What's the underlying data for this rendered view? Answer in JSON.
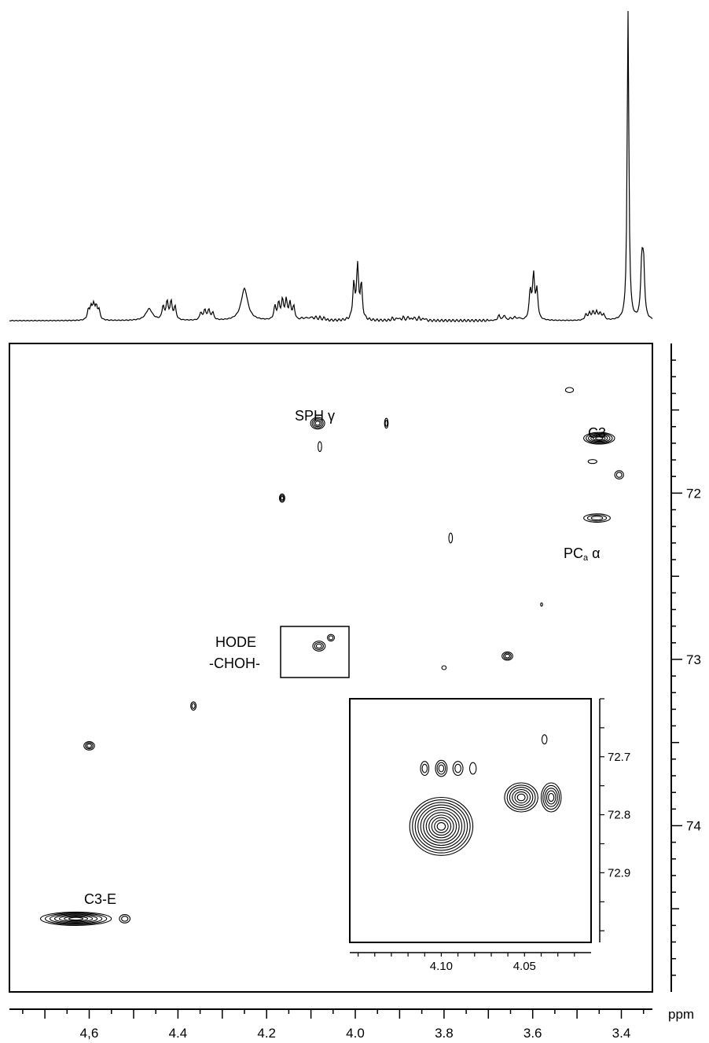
{
  "chart_data": {
    "type": "scatter",
    "subtype": "2D NMR contour plot (HSQC) with 1D proton projection",
    "x_axis": {
      "unit_label": "ppm",
      "range": [
        4.78,
        3.33
      ],
      "reversed": true,
      "ticks": [
        {
          "value": 4.6,
          "label": "4,6"
        },
        {
          "value": 4.4,
          "label": "4.4"
        },
        {
          "value": 4.2,
          "label": "4.2"
        },
        {
          "value": 4.0,
          "label": "4.0"
        },
        {
          "value": 3.8,
          "label": "3.8"
        },
        {
          "value": 3.6,
          "label": "3.6"
        },
        {
          "value": 3.4,
          "label": "3.4"
        }
      ]
    },
    "y_axis": {
      "range": [
        71.1,
        75.0
      ],
      "reversed": true,
      "ticks": [
        {
          "value": 72,
          "label": "72"
        },
        {
          "value": 73,
          "label": "73"
        },
        {
          "value": 74,
          "label": "74"
        }
      ]
    },
    "projection_1d": {
      "description": "proton spectrum along top",
      "multiplets": [
        {
          "x": 4.59,
          "height": 0.05,
          "n": 5,
          "spacing": 0.006
        },
        {
          "x": 4.465,
          "height": 0.04,
          "n": 1,
          "spacing": 0
        },
        {
          "x": 4.42,
          "height": 0.07,
          "n": 4,
          "spacing": 0.009
        },
        {
          "x": 4.335,
          "height": 0.04,
          "n": 4,
          "spacing": 0.009
        },
        {
          "x": 4.25,
          "height": 0.11,
          "n": 1,
          "spacing": 0
        },
        {
          "x": 4.16,
          "height": 0.07,
          "n": 6,
          "spacing": 0.0085
        },
        {
          "x": 4.095,
          "height": 0.012,
          "n": 6,
          "spacing": 0.01
        },
        {
          "x": 3.995,
          "height": 0.18,
          "n": 3,
          "spacing": 0.0085
        },
        {
          "x": 3.88,
          "height": 0.012,
          "n": 7,
          "spacing": 0.012
        },
        {
          "x": 3.67,
          "height": 0.022,
          "n": 2,
          "spacing": 0.012
        },
        {
          "x": 3.64,
          "height": 0.012,
          "n": 3,
          "spacing": 0.01
        },
        {
          "x": 3.598,
          "height": 0.15,
          "n": 3,
          "spacing": 0.0075
        },
        {
          "x": 3.46,
          "height": 0.03,
          "n": 6,
          "spacing": 0.008
        },
        {
          "x": 3.385,
          "height": 1.1,
          "n": 1,
          "spacing": 0
        },
        {
          "x": 3.352,
          "height": 0.22,
          "n": 2,
          "spacing": 0.004
        }
      ]
    },
    "cross_peaks": [
      {
        "x": 4.085,
        "y": 71.58,
        "rx": 0.016,
        "ry": 0.035,
        "rings": 4
      },
      {
        "x": 4.08,
        "y": 71.72,
        "rx": 0.004,
        "ry": 0.03,
        "rings": 1
      },
      {
        "x": 3.93,
        "y": 71.58,
        "rx": 0.004,
        "ry": 0.03,
        "rings": 2
      },
      {
        "x": 3.517,
        "y": 71.38,
        "rx": 0.009,
        "ry": 0.015,
        "rings": 1
      },
      {
        "x": 3.45,
        "y": 71.67,
        "rx": 0.035,
        "ry": 0.035,
        "rings": 6
      },
      {
        "x": 3.465,
        "y": 71.81,
        "rx": 0.01,
        "ry": 0.012,
        "rings": 1
      },
      {
        "x": 3.405,
        "y": 71.89,
        "rx": 0.01,
        "ry": 0.025,
        "rings": 2
      },
      {
        "x": 3.455,
        "y": 72.15,
        "rx": 0.03,
        "ry": 0.025,
        "rings": 3
      },
      {
        "x": 4.165,
        "y": 72.03,
        "rx": 0.006,
        "ry": 0.025,
        "rings": 3
      },
      {
        "x": 3.785,
        "y": 72.27,
        "rx": 0.004,
        "ry": 0.03,
        "rings": 1
      },
      {
        "x": 3.58,
        "y": 72.67,
        "rx": 0.002,
        "ry": 0.01,
        "rings": 1
      },
      {
        "x": 4.082,
        "y": 72.92,
        "rx": 0.014,
        "ry": 0.03,
        "rings": 3
      },
      {
        "x": 4.055,
        "y": 72.87,
        "rx": 0.008,
        "ry": 0.02,
        "rings": 2
      },
      {
        "x": 3.657,
        "y": 72.98,
        "rx": 0.012,
        "ry": 0.025,
        "rings": 3
      },
      {
        "x": 3.8,
        "y": 73.05,
        "rx": 0.005,
        "ry": 0.012,
        "rings": 1
      },
      {
        "x": 4.365,
        "y": 73.28,
        "rx": 0.006,
        "ry": 0.025,
        "rings": 2
      },
      {
        "x": 4.6,
        "y": 73.52,
        "rx": 0.012,
        "ry": 0.025,
        "rings": 3
      },
      {
        "x": 4.63,
        "y": 74.56,
        "rx": 0.08,
        "ry": 0.04,
        "rings": 7
      },
      {
        "x": 4.52,
        "y": 74.56,
        "rx": 0.012,
        "ry": 0.025,
        "rings": 2
      }
    ],
    "peak_labels": [
      {
        "text": "SPH γ"
      },
      {
        "text": "C3"
      },
      {
        "text": "PC",
        "sub": "a",
        "suffix": " α"
      },
      {
        "text": "HODE"
      },
      {
        "text": "-CHOH-"
      },
      {
        "text": "C3-E"
      }
    ],
    "inset": {
      "x_range": [
        4.155,
        4.01
      ],
      "y_range": [
        72.6,
        73.02
      ],
      "x_ticks": [
        {
          "value": 4.1,
          "label": "4.10"
        },
        {
          "value": 4.05,
          "label": "4.05"
        }
      ],
      "y_ticks": [
        {
          "value": 72.7,
          "label": "72.7"
        },
        {
          "value": 72.8,
          "label": "72.8"
        },
        {
          "value": 72.9,
          "label": "72.9"
        }
      ],
      "cross_peaks": [
        {
          "x": 4.1,
          "y": 72.82,
          "rx": 0.019,
          "ry": 0.05,
          "rings": 11
        },
        {
          "x": 4.052,
          "y": 72.77,
          "rx": 0.01,
          "ry": 0.025,
          "rings": 6
        },
        {
          "x": 4.034,
          "y": 72.77,
          "rx": 0.006,
          "ry": 0.025,
          "rings": 5
        },
        {
          "x": 4.11,
          "y": 72.72,
          "rx": 0.0025,
          "ry": 0.012,
          "rings": 2
        },
        {
          "x": 4.1,
          "y": 72.72,
          "rx": 0.0035,
          "ry": 0.014,
          "rings": 3
        },
        {
          "x": 4.09,
          "y": 72.72,
          "rx": 0.003,
          "ry": 0.012,
          "rings": 2
        },
        {
          "x": 4.081,
          "y": 72.72,
          "rx": 0.002,
          "ry": 0.01,
          "rings": 1
        },
        {
          "x": 4.038,
          "y": 72.67,
          "rx": 0.0015,
          "ry": 0.008,
          "rings": 1
        }
      ]
    }
  }
}
